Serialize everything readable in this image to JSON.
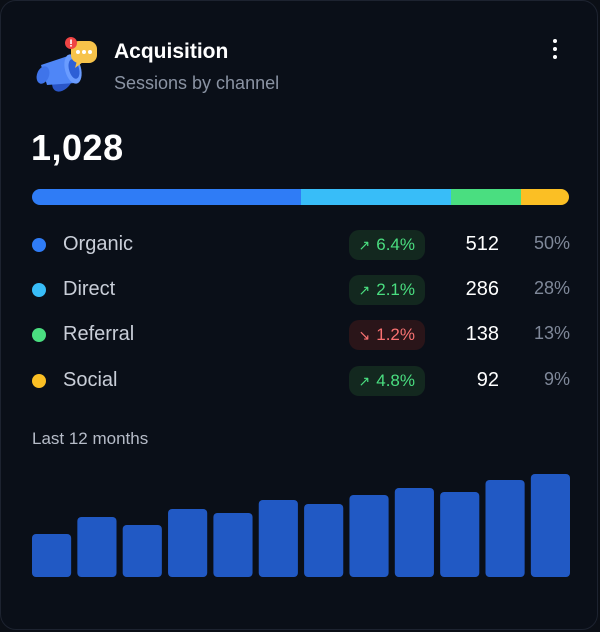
{
  "card": {
    "title": "Acquisition",
    "subtitle": "Sessions by channel",
    "total": "1,028",
    "logo_icon": "megaphone-icon",
    "menu_icon": "kebab-menu-icon"
  },
  "channels": [
    {
      "name": "Organic",
      "change": "6.4%",
      "trend": "up",
      "value": "512",
      "share": "50%",
      "color": "#2f7cf6",
      "fraction": 0.5
    },
    {
      "name": "Direct",
      "change": "2.1%",
      "trend": "up",
      "value": "286",
      "share": "28%",
      "color": "#38bdf8",
      "fraction": 0.28
    },
    {
      "name": "Referral",
      "change": "1.2%",
      "trend": "down",
      "value": "138",
      "share": "13%",
      "color": "#4ade80",
      "fraction": 0.13
    },
    {
      "name": "Social",
      "change": "4.8%",
      "trend": "up",
      "value": "92",
      "share": "9%",
      "color": "#fbbf24",
      "fraction": 0.09
    }
  ],
  "history": {
    "label": "Last 12 months"
  },
  "chart_data": {
    "type": "bar",
    "color": "#2159c4",
    "values": [
      43,
      60,
      52,
      68,
      64,
      77,
      73,
      82,
      89,
      85,
      97,
      103
    ],
    "ylim": [
      0,
      108
    ]
  }
}
